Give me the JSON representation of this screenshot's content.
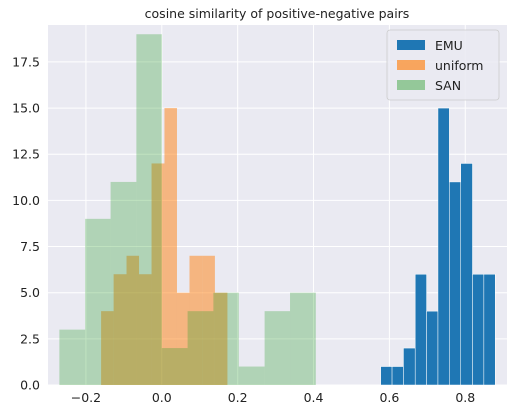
{
  "chart_data": {
    "type": "bar",
    "subtype": "histogram",
    "title": "cosine similarity of positive-negative pairs",
    "xlabel": "",
    "ylabel": "",
    "xlim": [
      -0.3,
      0.91
    ],
    "ylim": [
      0,
      19.5
    ],
    "xticks": [
      -0.2,
      0.0,
      0.2,
      0.4,
      0.6,
      0.8
    ],
    "xtick_labels": [
      "−0.2",
      "0.0",
      "0.2",
      "0.4",
      "0.6",
      "0.8"
    ],
    "yticks": [
      0.0,
      2.5,
      5.0,
      7.5,
      10.0,
      12.5,
      15.0,
      17.5
    ],
    "ytick_labels": [
      "0.0",
      "2.5",
      "5.0",
      "7.5",
      "10.0",
      "12.5",
      "15.0",
      "17.5"
    ],
    "grid": true,
    "background": "#eaeaf2",
    "legend_position": "top-right",
    "series": [
      {
        "name": "EMU",
        "color": "#1f77b4",
        "alpha": 1.0,
        "bins": [
          {
            "x0": 0.577,
            "x1": 0.607,
            "count": 1
          },
          {
            "x0": 0.607,
            "x1": 0.637,
            "count": 1
          },
          {
            "x0": 0.637,
            "x1": 0.668,
            "count": 2
          },
          {
            "x0": 0.668,
            "x1": 0.698,
            "count": 6
          },
          {
            "x0": 0.698,
            "x1": 0.728,
            "count": 4
          },
          {
            "x0": 0.728,
            "x1": 0.758,
            "count": 15
          },
          {
            "x0": 0.758,
            "x1": 0.788,
            "count": 11
          },
          {
            "x0": 0.788,
            "x1": 0.819,
            "count": 12
          },
          {
            "x0": 0.819,
            "x1": 0.849,
            "count": 6
          },
          {
            "x0": 0.849,
            "x1": 0.879,
            "count": 6
          }
        ]
      },
      {
        "name": "uniform",
        "color": "#ff7f0e",
        "alpha": 0.5,
        "bins": [
          {
            "x0": -0.16,
            "x1": -0.127,
            "count": 4
          },
          {
            "x0": -0.127,
            "x1": -0.093,
            "count": 6
          },
          {
            "x0": -0.093,
            "x1": -0.06,
            "count": 7
          },
          {
            "x0": -0.06,
            "x1": -0.027,
            "count": 6
          },
          {
            "x0": -0.027,
            "x1": 0.007,
            "count": 12
          },
          {
            "x0": 0.007,
            "x1": 0.04,
            "count": 15
          },
          {
            "x0": 0.04,
            "x1": 0.073,
            "count": 5
          },
          {
            "x0": 0.073,
            "x1": 0.107,
            "count": 7
          },
          {
            "x0": 0.107,
            "x1": 0.14,
            "count": 7
          },
          {
            "x0": 0.14,
            "x1": 0.173,
            "count": 5
          }
        ]
      },
      {
        "name": "SAN",
        "color": "#2ca02c",
        "alpha": 0.3,
        "bins": [
          {
            "x0": -0.27,
            "x1": -0.202,
            "count": 3
          },
          {
            "x0": -0.202,
            "x1": -0.135,
            "count": 9
          },
          {
            "x0": -0.135,
            "x1": -0.067,
            "count": 11
          },
          {
            "x0": -0.067,
            "x1": 0.0,
            "count": 19
          },
          {
            "x0": 0.0,
            "x1": 0.068,
            "count": 2
          },
          {
            "x0": 0.068,
            "x1": 0.136,
            "count": 4
          },
          {
            "x0": 0.136,
            "x1": 0.203,
            "count": 5
          },
          {
            "x0": 0.203,
            "x1": 0.271,
            "count": 1
          },
          {
            "x0": 0.271,
            "x1": 0.338,
            "count": 4
          },
          {
            "x0": 0.338,
            "x1": 0.406,
            "count": 5
          }
        ]
      }
    ]
  }
}
